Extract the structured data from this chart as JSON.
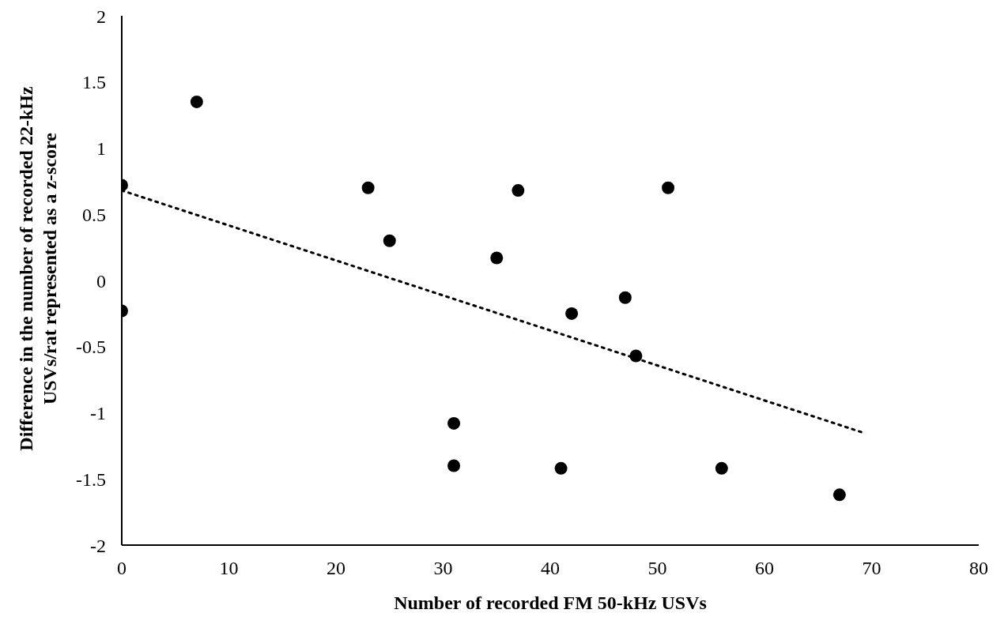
{
  "chart_data": {
    "type": "scatter",
    "xlabel": "Number of recorded FM 50-kHz USVs",
    "ylabel": "Difference in the number of recorded 22-kHz USVs/rat represented as a z-score",
    "series": [
      {
        "color": "#000000",
        "marker": "circle",
        "x": [
          0,
          0,
          7,
          23,
          25,
          31,
          31,
          35,
          37,
          41,
          42,
          47,
          48,
          51,
          56,
          67
        ],
        "values": [
          0.72,
          -0.23,
          1.35,
          0.7,
          0.3,
          -1.08,
          -1.4,
          0.17,
          0.68,
          -1.42,
          -0.25,
          -0.13,
          -0.57,
          0.7,
          -1.42,
          -1.62
        ]
      },
      {
        "type": "line",
        "color": "#000000",
        "line_style": "dotted",
        "marker": "none",
        "x": [
          0,
          69.2
        ],
        "values": [
          0.68,
          -1.15
        ]
      }
    ],
    "xlim": [
      0,
      80
    ],
    "xticks": [
      0,
      10,
      20,
      30,
      40,
      50,
      60,
      70,
      80
    ],
    "ylim": [
      -2,
      2
    ],
    "yticks": [
      -2,
      -1.5,
      -1,
      -0.5,
      0,
      0.5,
      1,
      1.5,
      2
    ],
    "grid": false
  }
}
